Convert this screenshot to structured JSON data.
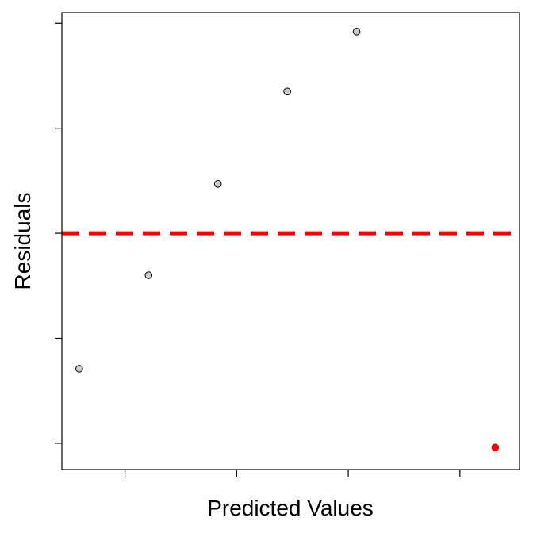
{
  "chart_data": {
    "type": "scatter",
    "title": "",
    "xlabel": "Predicted Values",
    "ylabel": "Residuals",
    "xlim": [
      0.75,
      7.35
    ],
    "ylim": [
      -2.25,
      2.1
    ],
    "x_ticks": [
      1.66,
      3.27,
      4.88,
      6.49
    ],
    "y_ticks": [
      -2,
      -1,
      0,
      1,
      2
    ],
    "tick_labels_shown": false,
    "grid": false,
    "legend": "none",
    "reference_line": {
      "y": 0,
      "style": "dashed",
      "color": "#ff0000"
    },
    "series": [
      {
        "points": [
          {
            "x": 1.0,
            "y": -1.29,
            "color": "#cccccc"
          },
          {
            "x": 2.0,
            "y": -0.4,
            "color": "#cccccc"
          },
          {
            "x": 3.0,
            "y": 0.47,
            "color": "#cccccc"
          },
          {
            "x": 4.0,
            "y": 1.35,
            "color": "#cccccc"
          },
          {
            "x": 5.0,
            "y": 1.92,
            "color": "#cccccc"
          },
          {
            "x": 7.0,
            "y": -2.04,
            "color": "#ff0000"
          }
        ]
      }
    ]
  }
}
